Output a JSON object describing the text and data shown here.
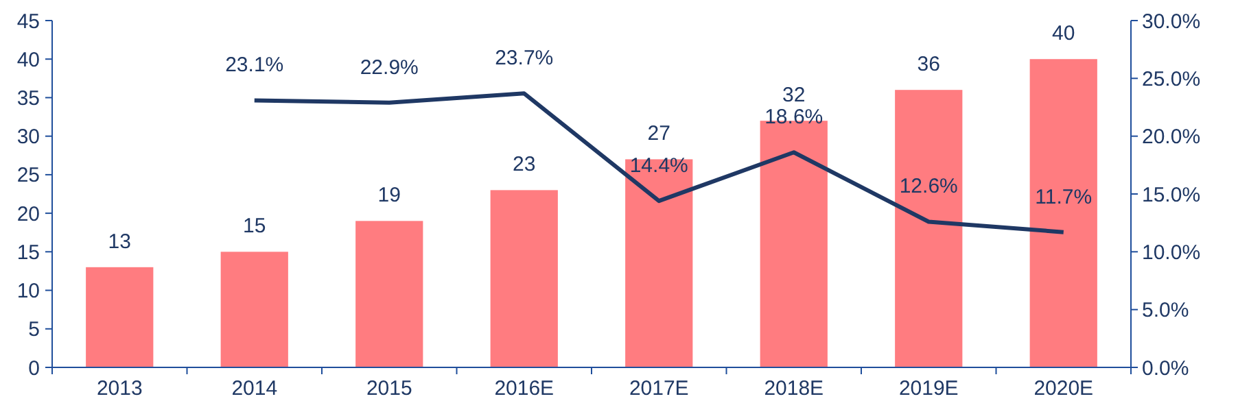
{
  "chart_data": {
    "type": "bar",
    "categories": [
      "2013",
      "2014",
      "2015",
      "2016E",
      "2017E",
      "2018E",
      "2019E",
      "2020E"
    ],
    "ylim": [
      0,
      45
    ],
    "yticks": [
      0,
      5,
      10,
      15,
      20,
      25,
      30,
      35,
      40,
      45
    ],
    "y2lim": [
      0,
      30
    ],
    "y2ticks": [
      {
        "value": 0,
        "label": "0.0%"
      },
      {
        "value": 5,
        "label": "5.0%"
      },
      {
        "value": 10,
        "label": "10.0%"
      },
      {
        "value": 15,
        "label": "15.0%"
      },
      {
        "value": 20,
        "label": "20.0%"
      },
      {
        "value": 25,
        "label": "25.0%"
      },
      {
        "value": 30,
        "label": "30.0%"
      }
    ],
    "series": [
      {
        "color": "#ff7c80",
        "values": [
          13,
          15,
          19,
          23,
          27,
          32,
          36,
          40
        ],
        "value_labels": [
          "13",
          "15",
          "19",
          "23",
          "27",
          "32",
          "36",
          "40"
        ]
      },
      {
        "type": "line",
        "axis": "y2",
        "color": "#1f3864",
        "values": [
          null,
          23.1,
          22.9,
          23.7,
          14.4,
          18.6,
          12.6,
          11.7
        ],
        "value_labels": [
          null,
          "23.1%",
          "22.9%",
          "23.7%",
          "14.4%",
          "18.6%",
          "12.6%",
          "11.7%"
        ]
      }
    ],
    "grid": false
  }
}
